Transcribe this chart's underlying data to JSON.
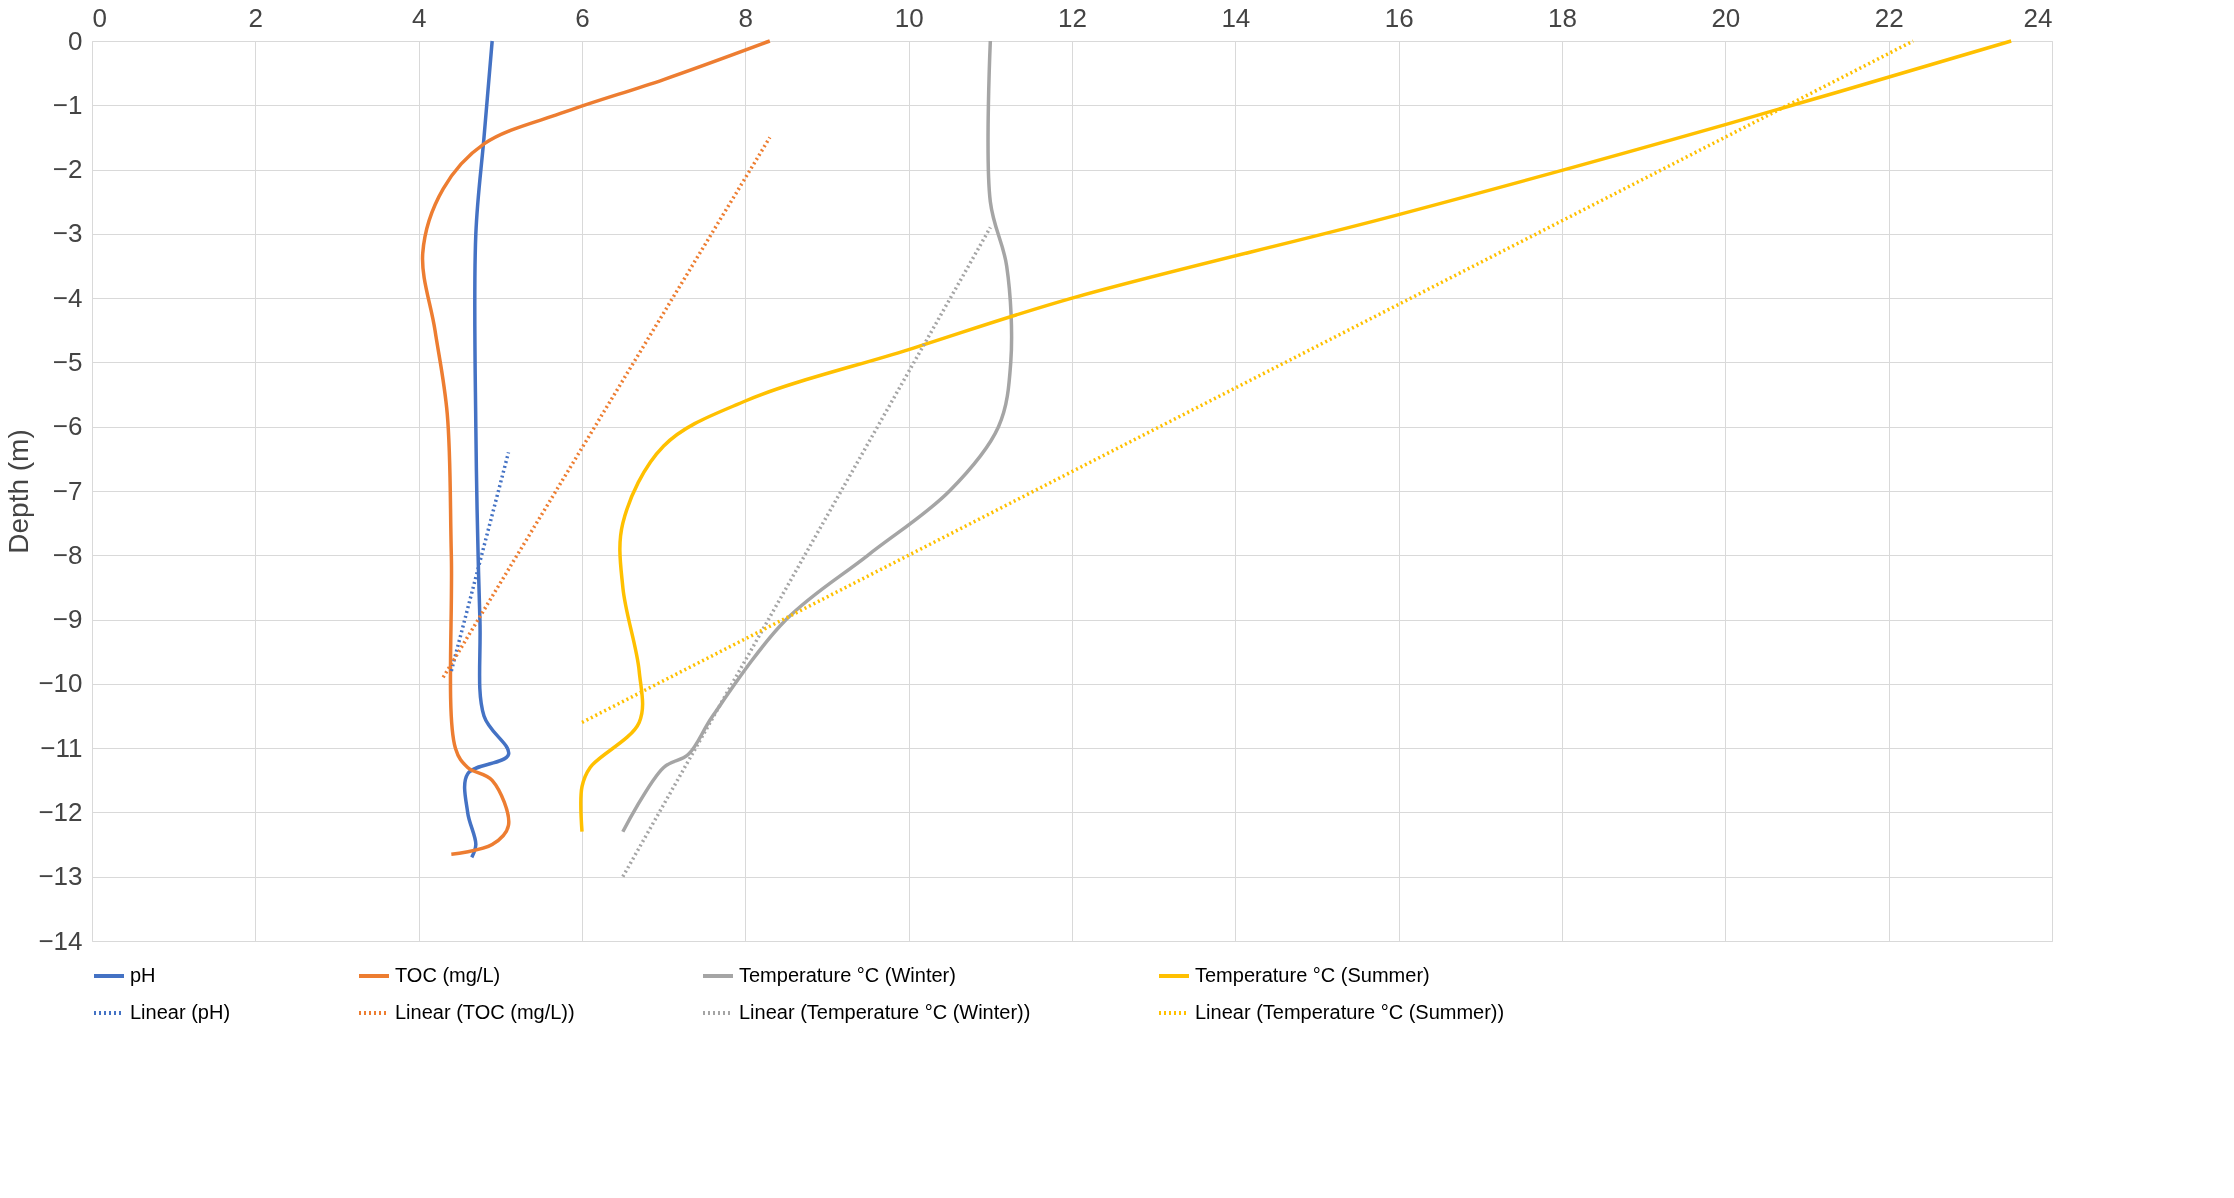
{
  "chart_data": {
    "type": "line",
    "ylabel": "Depth (m)",
    "xlim": [
      0,
      24
    ],
    "xticks": [
      0,
      2,
      4,
      6,
      8,
      10,
      12,
      14,
      16,
      18,
      20,
      22,
      24
    ],
    "ylim": [
      -14,
      0
    ],
    "yticks": [
      0,
      -1,
      -2,
      -3,
      -4,
      -5,
      -6,
      -7,
      -8,
      -9,
      -10,
      -11,
      -12,
      -13,
      -14
    ],
    "grid": true,
    "legend": "bottom",
    "marker": "none",
    "series": [
      {
        "name": "pH",
        "color": "#4472c4",
        "line_style": "solid",
        "x": [
          4.9,
          4.8,
          4.7,
          4.7,
          4.75,
          4.8,
          5.1,
          4.6,
          4.6,
          4.7,
          4.65
        ],
        "values": [
          0,
          -1.5,
          -3,
          -6,
          -9,
          -10.5,
          -11.1,
          -11.4,
          -12,
          -12.5,
          -12.7
        ]
      },
      {
        "name": "TOC (mg/L)",
        "color": "#ed7d31",
        "line_style": "solid",
        "x": [
          8.3,
          7,
          5.8,
          4.8,
          4.3,
          4.05,
          4.2,
          4.35,
          4.4,
          4.45,
          4.6,
          4.9,
          5.1,
          4.9,
          4.4
        ],
        "values": [
          0,
          -0.6,
          -1.1,
          -1.6,
          -2.3,
          -3.3,
          -4.5,
          -5.8,
          -8,
          -11,
          -11.3,
          -11.5,
          -12.2,
          -12.5,
          -12.65
        ]
      },
      {
        "name": "Temperature °C (Winter)",
        "color": "#a5a5a5",
        "line_style": "solid",
        "x": [
          11,
          11,
          11.2,
          11.25,
          11.1,
          10.5,
          9.5,
          8.5,
          7.6,
          7.3,
          7,
          6.5
        ],
        "values": [
          0,
          -2.5,
          -3.5,
          -5,
          -6,
          -7,
          -8,
          -9,
          -10.5,
          -11.1,
          -11.3,
          -12.3
        ]
      },
      {
        "name": "Temperature °C (Summer)",
        "color": "#ffc000",
        "line_style": "solid",
        "x": [
          23.5,
          20,
          16,
          12,
          10,
          8,
          7,
          6.5,
          6.5,
          6.7,
          6.7,
          6.1,
          6,
          6
        ],
        "values": [
          0,
          -1.3,
          -2.7,
          -4,
          -4.8,
          -5.6,
          -6.3,
          -7.5,
          -8.5,
          -9.8,
          -10.6,
          -11.3,
          -11.6,
          -12.3
        ]
      },
      {
        "name": "Linear (pH)",
        "color": "#4472c4",
        "line_style": "dotted",
        "x": [
          4.4,
          5.1
        ],
        "values": [
          -9.8,
          -6.4
        ]
      },
      {
        "name": "Linear (TOC (mg/L))",
        "color": "#ed7d31",
        "line_style": "dotted",
        "x": [
          4.3,
          8.3
        ],
        "values": [
          -9.9,
          -1.5
        ]
      },
      {
        "name": "Linear (Temperature °C (Winter))",
        "color": "#a5a5a5",
        "line_style": "dotted",
        "x": [
          6.5,
          11
        ],
        "values": [
          -13,
          -2.9
        ]
      },
      {
        "name": "Linear (Temperature °C (Summer))",
        "color": "#ffc000",
        "line_style": "dotted",
        "x": [
          6,
          22.3
        ],
        "values": [
          -10.6,
          0
        ]
      }
    ]
  }
}
